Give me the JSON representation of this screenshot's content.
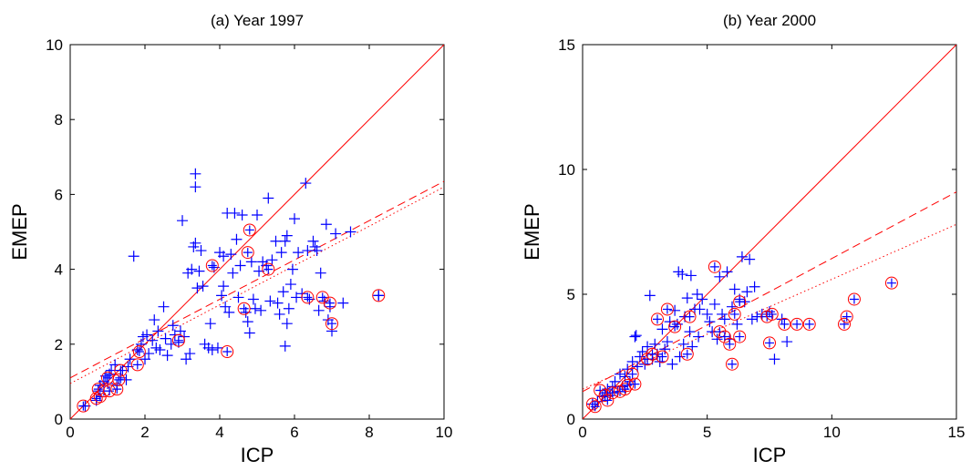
{
  "chart_data": [
    {
      "type": "scatter",
      "title": "(a) Year 1997",
      "xlabel": "ICP",
      "ylabel": "EMEP",
      "xlim": [
        0,
        10
      ],
      "ylim": [
        0,
        10
      ],
      "xticks": [
        "0",
        "2",
        "4",
        "6",
        "8",
        "10"
      ],
      "yticks": [
        "0",
        "2",
        "4",
        "6",
        "8",
        "10"
      ],
      "grid": false,
      "colors": {
        "plus": "#0000ff",
        "circle": "#ff0000",
        "line": "#ff0000"
      },
      "lines": [
        {
          "style": "solid",
          "from": [
            0,
            0
          ],
          "to": [
            10,
            10
          ]
        },
        {
          "style": "dashed",
          "from": [
            0,
            1.1
          ],
          "to": [
            10,
            6.35
          ]
        },
        {
          "style": "dotted",
          "from": [
            0,
            0.95
          ],
          "to": [
            10,
            6.2
          ]
        }
      ],
      "series": [
        {
          "marker": "plus",
          "points": [
            [
              0.4,
              0.35
            ],
            [
              0.7,
              0.5
            ],
            [
              0.75,
              0.75
            ],
            [
              0.8,
              0.9
            ],
            [
              0.9,
              1.0
            ],
            [
              0.95,
              1.15
            ],
            [
              1.0,
              0.95
            ],
            [
              1.05,
              1.2
            ],
            [
              1.1,
              1.3
            ],
            [
              1.2,
              1.45
            ],
            [
              1.25,
              0.9
            ],
            [
              1.35,
              1.1
            ],
            [
              1.4,
              1.3
            ],
            [
              1.5,
              1.05
            ],
            [
              1.55,
              1.4
            ],
            [
              1.6,
              1.6
            ],
            [
              1.7,
              4.35
            ],
            [
              1.8,
              1.85
            ],
            [
              1.9,
              2.0
            ],
            [
              1.95,
              2.2
            ],
            [
              2.0,
              1.6
            ],
            [
              2.05,
              2.25
            ],
            [
              2.1,
              1.75
            ],
            [
              2.2,
              2.1
            ],
            [
              2.25,
              2.65
            ],
            [
              2.3,
              1.9
            ],
            [
              2.35,
              2.35
            ],
            [
              2.4,
              1.85
            ],
            [
              2.5,
              3.0
            ],
            [
              2.55,
              2.15
            ],
            [
              2.6,
              1.7
            ],
            [
              2.7,
              2.0
            ],
            [
              2.75,
              2.5
            ],
            [
              2.8,
              2.25
            ],
            [
              2.9,
              2.05
            ],
            [
              2.95,
              2.35
            ],
            [
              3.0,
              5.3
            ],
            [
              3.05,
              2.2
            ],
            [
              3.1,
              1.6
            ],
            [
              3.15,
              3.9
            ],
            [
              3.2,
              1.75
            ],
            [
              3.25,
              4.0
            ],
            [
              3.3,
              4.6
            ],
            [
              3.35,
              4.7
            ],
            [
              3.35,
              6.55
            ],
            [
              3.35,
              6.2
            ],
            [
              3.4,
              3.5
            ],
            [
              3.45,
              3.95
            ],
            [
              3.5,
              4.5
            ],
            [
              3.55,
              3.55
            ],
            [
              3.6,
              2.0
            ],
            [
              3.7,
              1.9
            ],
            [
              3.75,
              2.55
            ],
            [
              3.8,
              1.85
            ],
            [
              3.85,
              4.05
            ],
            [
              3.95,
              1.9
            ],
            [
              4.0,
              4.45
            ],
            [
              4.05,
              3.3
            ],
            [
              4.1,
              3.55
            ],
            [
              4.1,
              4.35
            ],
            [
              4.15,
              3.0
            ],
            [
              4.2,
              5.5
            ],
            [
              4.25,
              2.85
            ],
            [
              4.3,
              4.4
            ],
            [
              4.35,
              3.9
            ],
            [
              4.4,
              5.5
            ],
            [
              4.45,
              4.8
            ],
            [
              4.5,
              3.25
            ],
            [
              4.55,
              4.1
            ],
            [
              4.6,
              5.45
            ],
            [
              4.7,
              2.85
            ],
            [
              4.75,
              2.6
            ],
            [
              4.8,
              2.3
            ],
            [
              4.85,
              4.2
            ],
            [
              4.9,
              3.2
            ],
            [
              4.95,
              2.95
            ],
            [
              5.0,
              5.45
            ],
            [
              5.05,
              3.95
            ],
            [
              5.1,
              2.9
            ],
            [
              5.15,
              4.2
            ],
            [
              5.25,
              4.1
            ],
            [
              5.3,
              5.9
            ],
            [
              5.35,
              3.15
            ],
            [
              5.4,
              4.25
            ],
            [
              5.5,
              4.75
            ],
            [
              5.55,
              3.1
            ],
            [
              5.6,
              2.8
            ],
            [
              5.65,
              4.45
            ],
            [
              5.7,
              3.4
            ],
            [
              5.75,
              4.75
            ],
            [
              5.8,
              4.9
            ],
            [
              5.8,
              2.55
            ],
            [
              5.85,
              2.95
            ],
            [
              5.9,
              3.6
            ],
            [
              5.95,
              4.0
            ],
            [
              6.0,
              5.35
            ],
            [
              6.05,
              3.25
            ],
            [
              6.1,
              4.45
            ],
            [
              6.2,
              3.35
            ],
            [
              6.3,
              6.3
            ],
            [
              6.4,
              3.2
            ],
            [
              6.5,
              4.75
            ],
            [
              6.55,
              4.6
            ],
            [
              6.6,
              4.5
            ],
            [
              6.65,
              2.9
            ],
            [
              6.7,
              3.9
            ],
            [
              6.8,
              3.15
            ],
            [
              6.85,
              5.2
            ],
            [
              6.9,
              2.65
            ],
            [
              6.95,
              3.0
            ],
            [
              7.0,
              2.35
            ],
            [
              7.1,
              4.95
            ],
            [
              7.3,
              3.1
            ],
            [
              7.5,
              5.0
            ],
            [
              8.25,
              3.3
            ],
            [
              5.75,
              1.95
            ],
            [
              6.35,
              4.5
            ]
          ]
        },
        {
          "marker": "circle-plus",
          "points": [
            [
              0.35,
              0.35
            ],
            [
              0.7,
              0.55
            ],
            [
              0.75,
              0.8
            ],
            [
              0.8,
              0.6
            ],
            [
              0.9,
              0.75
            ],
            [
              1.0,
              1.1
            ],
            [
              1.05,
              0.75
            ],
            [
              1.25,
              0.8
            ],
            [
              1.3,
              1.05
            ],
            [
              1.35,
              1.3
            ],
            [
              1.8,
              1.45
            ],
            [
              1.85,
              1.8
            ],
            [
              2.9,
              2.1
            ],
            [
              3.8,
              4.1
            ],
            [
              4.2,
              1.8
            ],
            [
              4.65,
              2.95
            ],
            [
              4.75,
              4.45
            ],
            [
              4.8,
              5.05
            ],
            [
              5.3,
              4.0
            ],
            [
              6.35,
              3.25
            ],
            [
              6.75,
              3.25
            ],
            [
              6.95,
              3.1
            ],
            [
              7.0,
              2.55
            ],
            [
              8.25,
              3.3
            ]
          ]
        }
      ]
    },
    {
      "type": "scatter",
      "title": "(b) Year 2000",
      "xlabel": "ICP",
      "ylabel": "EMEP",
      "xlim": [
        0,
        15
      ],
      "ylim": [
        0,
        15
      ],
      "xticks": [
        "0",
        "5",
        "10",
        "15"
      ],
      "yticks": [
        "0",
        "5",
        "10",
        "15"
      ],
      "grid": false,
      "colors": {
        "plus": "#0000ff",
        "circle": "#ff0000",
        "line": "#ff0000"
      },
      "lines": [
        {
          "style": "solid",
          "from": [
            0,
            0
          ],
          "to": [
            15,
            15
          ]
        },
        {
          "style": "dashed",
          "from": [
            0,
            1.1
          ],
          "to": [
            15,
            9.1
          ]
        },
        {
          "style": "dotted",
          "from": [
            0,
            1.2
          ],
          "to": [
            15,
            7.8
          ]
        }
      ],
      "series": [
        {
          "marker": "plus",
          "points": [
            [
              0.4,
              0.6
            ],
            [
              0.6,
              0.7
            ],
            [
              0.8,
              0.9
            ],
            [
              0.9,
              1.05
            ],
            [
              1.0,
              1.2
            ],
            [
              1.1,
              0.95
            ],
            [
              1.2,
              1.3
            ],
            [
              1.3,
              1.5
            ],
            [
              1.4,
              1.1
            ],
            [
              1.5,
              1.8
            ],
            [
              1.6,
              1.3
            ],
            [
              1.7,
              1.7
            ],
            [
              1.8,
              2.0
            ],
            [
              1.9,
              1.5
            ],
            [
              2.0,
              2.3
            ],
            [
              2.1,
              3.3
            ],
            [
              2.15,
              3.35
            ],
            [
              2.2,
              2.1
            ],
            [
              2.3,
              2.5
            ],
            [
              2.4,
              2.7
            ],
            [
              2.5,
              2.2
            ],
            [
              2.6,
              2.9
            ],
            [
              2.7,
              4.95
            ],
            [
              2.8,
              2.4
            ],
            [
              2.9,
              3.0
            ],
            [
              3.0,
              2.6
            ],
            [
              3.1,
              2.3
            ],
            [
              3.2,
              3.6
            ],
            [
              3.3,
              2.8
            ],
            [
              3.4,
              3.1
            ],
            [
              3.5,
              3.9
            ],
            [
              3.6,
              2.2
            ],
            [
              3.7,
              4.35
            ],
            [
              3.8,
              3.8
            ],
            [
              3.85,
              5.9
            ],
            [
              3.9,
              2.5
            ],
            [
              4.0,
              5.8
            ],
            [
              4.05,
              3.0
            ],
            [
              4.1,
              4.1
            ],
            [
              4.2,
              4.85
            ],
            [
              4.3,
              3.5
            ],
            [
              4.35,
              5.75
            ],
            [
              4.4,
              2.9
            ],
            [
              4.5,
              4.4
            ],
            [
              4.6,
              5.0
            ],
            [
              4.65,
              3.3
            ],
            [
              4.7,
              4.4
            ],
            [
              4.8,
              4.8
            ],
            [
              5.0,
              4.2
            ],
            [
              5.1,
              3.9
            ],
            [
              5.2,
              3.5
            ],
            [
              5.3,
              4.6
            ],
            [
              5.4,
              3.2
            ],
            [
              5.5,
              5.7
            ],
            [
              5.6,
              4.2
            ],
            [
              5.7,
              4.0
            ],
            [
              5.8,
              5.9
            ],
            [
              5.9,
              3.2
            ],
            [
              6.0,
              4.5
            ],
            [
              6.1,
              5.2
            ],
            [
              6.2,
              3.8
            ],
            [
              6.3,
              4.8
            ],
            [
              6.4,
              6.5
            ],
            [
              6.5,
              4.7
            ],
            [
              6.6,
              5.1
            ],
            [
              6.7,
              6.4
            ],
            [
              6.8,
              4.0
            ],
            [
              6.9,
              5.3
            ],
            [
              7.0,
              4.1
            ],
            [
              7.2,
              4.2
            ],
            [
              7.5,
              4.3
            ],
            [
              7.7,
              2.4
            ],
            [
              8.0,
              4.0
            ],
            [
              8.2,
              3.1
            ]
          ]
        },
        {
          "marker": "circle-plus",
          "points": [
            [
              0.4,
              0.6
            ],
            [
              0.5,
              0.5
            ],
            [
              0.7,
              1.15
            ],
            [
              0.9,
              0.95
            ],
            [
              1.0,
              0.75
            ],
            [
              1.2,
              1.05
            ],
            [
              1.5,
              1.1
            ],
            [
              1.7,
              1.2
            ],
            [
              1.8,
              1.35
            ],
            [
              2.0,
              1.8
            ],
            [
              2.1,
              1.4
            ],
            [
              2.6,
              2.4
            ],
            [
              2.8,
              2.6
            ],
            [
              3.0,
              4.0
            ],
            [
              3.2,
              2.5
            ],
            [
              3.4,
              4.4
            ],
            [
              3.7,
              3.7
            ],
            [
              4.2,
              2.6
            ],
            [
              4.3,
              4.1
            ],
            [
              5.3,
              6.1
            ],
            [
              5.5,
              3.5
            ],
            [
              5.7,
              3.3
            ],
            [
              5.9,
              3.0
            ],
            [
              6.0,
              2.2
            ],
            [
              6.1,
              4.2
            ],
            [
              6.3,
              4.7
            ],
            [
              6.3,
              3.3
            ],
            [
              7.4,
              4.1
            ],
            [
              7.5,
              3.05
            ],
            [
              7.6,
              4.2
            ],
            [
              8.1,
              3.8
            ],
            [
              8.6,
              3.8
            ],
            [
              9.1,
              3.8
            ],
            [
              10.5,
              3.8
            ],
            [
              10.6,
              4.1
            ],
            [
              10.9,
              4.8
            ],
            [
              12.4,
              5.45
            ]
          ]
        }
      ]
    }
  ]
}
